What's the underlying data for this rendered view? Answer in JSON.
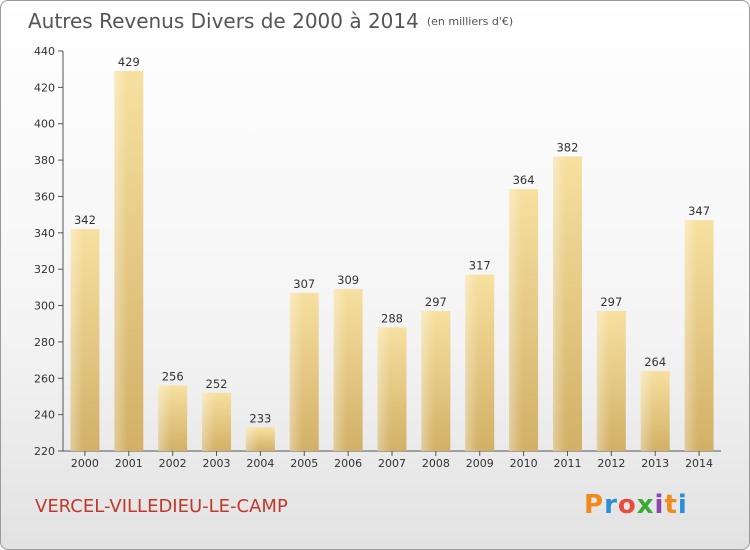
{
  "header": {
    "title": "Autres Revenus Divers de 2000 à 2014",
    "unit_note": "(en milliers d'€)"
  },
  "footer": {
    "commune": "VERCEL-VILLEDIEU-LE-CAMP",
    "brand": "Proxiti",
    "brand_colors": [
      "#f08a1c",
      "#2c8fd6",
      "#e84c3d",
      "#3aaa35",
      "#8e44ad",
      "#f08a1c",
      "#2c8fd6"
    ]
  },
  "chart_data": {
    "type": "bar",
    "categories": [
      "2000",
      "2001",
      "2002",
      "2003",
      "2004",
      "2005",
      "2006",
      "2007",
      "2008",
      "2009",
      "2010",
      "2011",
      "2012",
      "2013",
      "2014"
    ],
    "values": [
      342,
      429,
      256,
      252,
      233,
      307,
      309,
      288,
      297,
      317,
      364,
      382,
      297,
      264,
      347
    ],
    "yticks": [
      220,
      240,
      260,
      280,
      300,
      320,
      340,
      360,
      380,
      400,
      420,
      440
    ],
    "ylim": [
      220,
      440
    ],
    "grid": false,
    "bar_color": "#e9c97a"
  }
}
